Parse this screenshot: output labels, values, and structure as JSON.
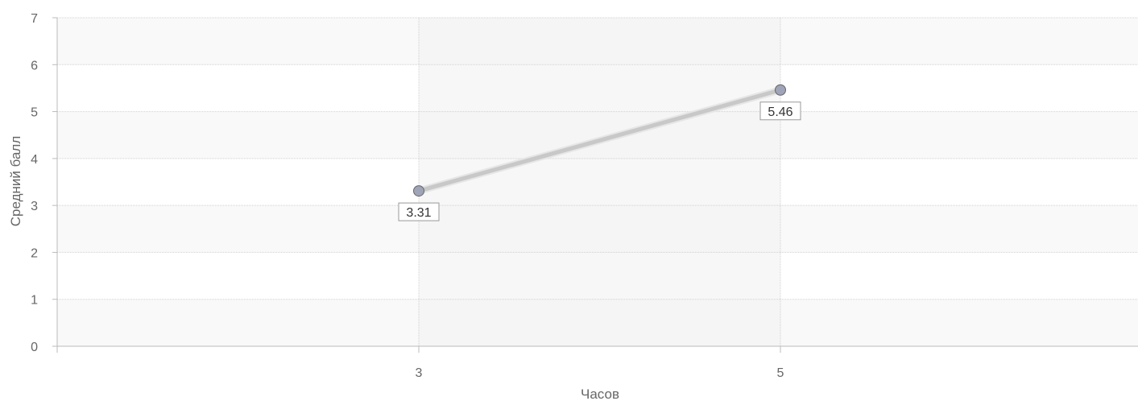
{
  "chart_data": {
    "type": "line",
    "title": "",
    "xlabel": "Часов",
    "ylabel": "Средний балл",
    "x_categories": [
      "3",
      "5"
    ],
    "x_range": [
      2,
      7
    ],
    "ylim": [
      0,
      7
    ],
    "y_ticks": [
      "0",
      "1",
      "2",
      "3",
      "4",
      "5",
      "6",
      "7"
    ],
    "grid": true,
    "series": [
      {
        "points": [
          {
            "x": 3,
            "y": 3.31,
            "label": "3.31"
          },
          {
            "x": 5,
            "y": 5.46,
            "label": "5.46"
          }
        ],
        "color": "#c8c8c8",
        "marker_color": "#a0a4b8"
      }
    ],
    "band_colors": [
      "#f9f9f9",
      "#ffffff"
    ],
    "highlight_color": "#f2f2f2"
  }
}
